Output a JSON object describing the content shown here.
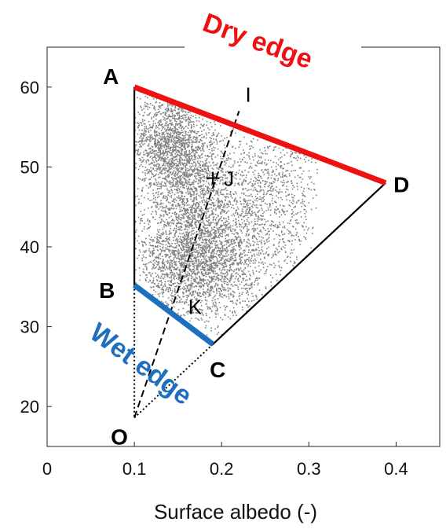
{
  "chart_data": {
    "type": "scatter",
    "title": "",
    "xlabel": "Surface albedo (-)",
    "ylabel": "",
    "xlim": [
      0,
      0.45
    ],
    "ylim": [
      15,
      65
    ],
    "xticks": [
      "0",
      "0.1",
      "0.2",
      "0.3",
      "0.4"
    ],
    "yticks": [
      "20",
      "30",
      "40",
      "50",
      "60"
    ],
    "grid": false,
    "points": {
      "A": [
        0.1,
        60
      ],
      "B": [
        0.1,
        35.2
      ],
      "C": [
        0.19,
        27.8
      ],
      "D": [
        0.388,
        48
      ],
      "O": [
        0.1,
        18.6
      ],
      "I": [
        0.22,
        57
      ],
      "J": [
        0.19,
        48.6
      ],
      "K": [
        0.16,
        31.6
      ]
    },
    "labels": {
      "A": "A",
      "B": "B",
      "C": "C",
      "D": "D",
      "O": "O",
      "I": "I",
      "J": "J",
      "K": "K"
    },
    "annotations": {
      "dry_edge": "Dry edge",
      "wet_edge": "Wet edge",
      "dry_edge_color": "#ee1111",
      "wet_edge_color": "#1f6fbf"
    },
    "scatter_color": "#808080",
    "scatter_clusters": [
      {
        "cx": 0.14,
        "cy": 53,
        "sx": 0.022,
        "sy": 3.2,
        "n": 1400
      },
      {
        "cx": 0.17,
        "cy": 47,
        "sx": 0.028,
        "sy": 4.0,
        "n": 1300
      },
      {
        "cx": 0.17,
        "cy": 38,
        "sx": 0.034,
        "sy": 3.6,
        "n": 2400
      },
      {
        "cx": 0.24,
        "cy": 43,
        "sx": 0.03,
        "sy": 5.0,
        "n": 700
      },
      {
        "cx": 0.27,
        "cy": 48,
        "sx": 0.025,
        "sy": 4.0,
        "n": 350
      }
    ]
  }
}
